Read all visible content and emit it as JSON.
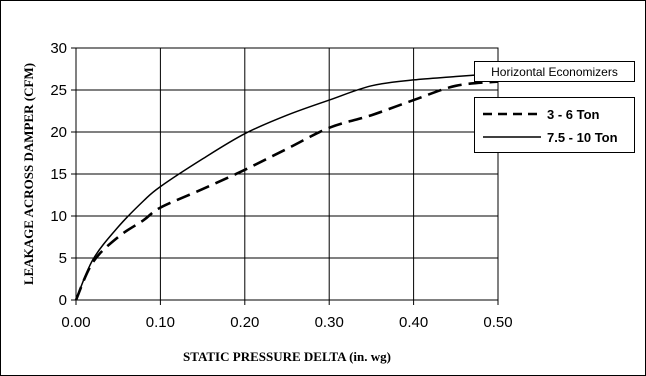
{
  "chart_data": {
    "type": "line",
    "title": "",
    "xlabel": "STATIC PRESSURE DELTA (in. wg)",
    "ylabel": "LEAKAGE ACROSS DAMPER (CFM)",
    "xlim": [
      0,
      0.5
    ],
    "ylim": [
      0,
      30
    ],
    "x_ticks": [
      "0.00",
      "0.10",
      "0.20",
      "0.30",
      "0.40",
      "0.50"
    ],
    "y_ticks": [
      "0",
      "5",
      "10",
      "15",
      "20",
      "25",
      "30"
    ],
    "x_tick_values": [
      0,
      0.1,
      0.2,
      0.3,
      0.4,
      0.5
    ],
    "y_tick_values": [
      0,
      5,
      10,
      15,
      20,
      25,
      30
    ],
    "grid": true,
    "legend_title": "Horizontal Economizers",
    "legend_position": "right",
    "series": [
      {
        "name": "3 - 6 Ton",
        "style": "dashed",
        "x": [
          0,
          0.02,
          0.05,
          0.08,
          0.1,
          0.15,
          0.2,
          0.25,
          0.3,
          0.35,
          0.4,
          0.45,
          0.5
        ],
        "y": [
          0,
          4.5,
          7.5,
          9.5,
          11,
          13.2,
          15.5,
          18,
          20.5,
          22,
          23.8,
          25.5,
          26
        ]
      },
      {
        "name": "7.5 - 10 Ton",
        "style": "solid",
        "x": [
          0,
          0.02,
          0.05,
          0.08,
          0.1,
          0.15,
          0.2,
          0.25,
          0.3,
          0.35,
          0.4,
          0.45,
          0.5
        ],
        "y": [
          0,
          4.8,
          8.7,
          11.8,
          13.5,
          16.8,
          19.8,
          22,
          23.8,
          25.5,
          26.2,
          26.6,
          27
        ]
      }
    ]
  },
  "colors": {
    "line": "#000000",
    "grid": "#000000"
  }
}
